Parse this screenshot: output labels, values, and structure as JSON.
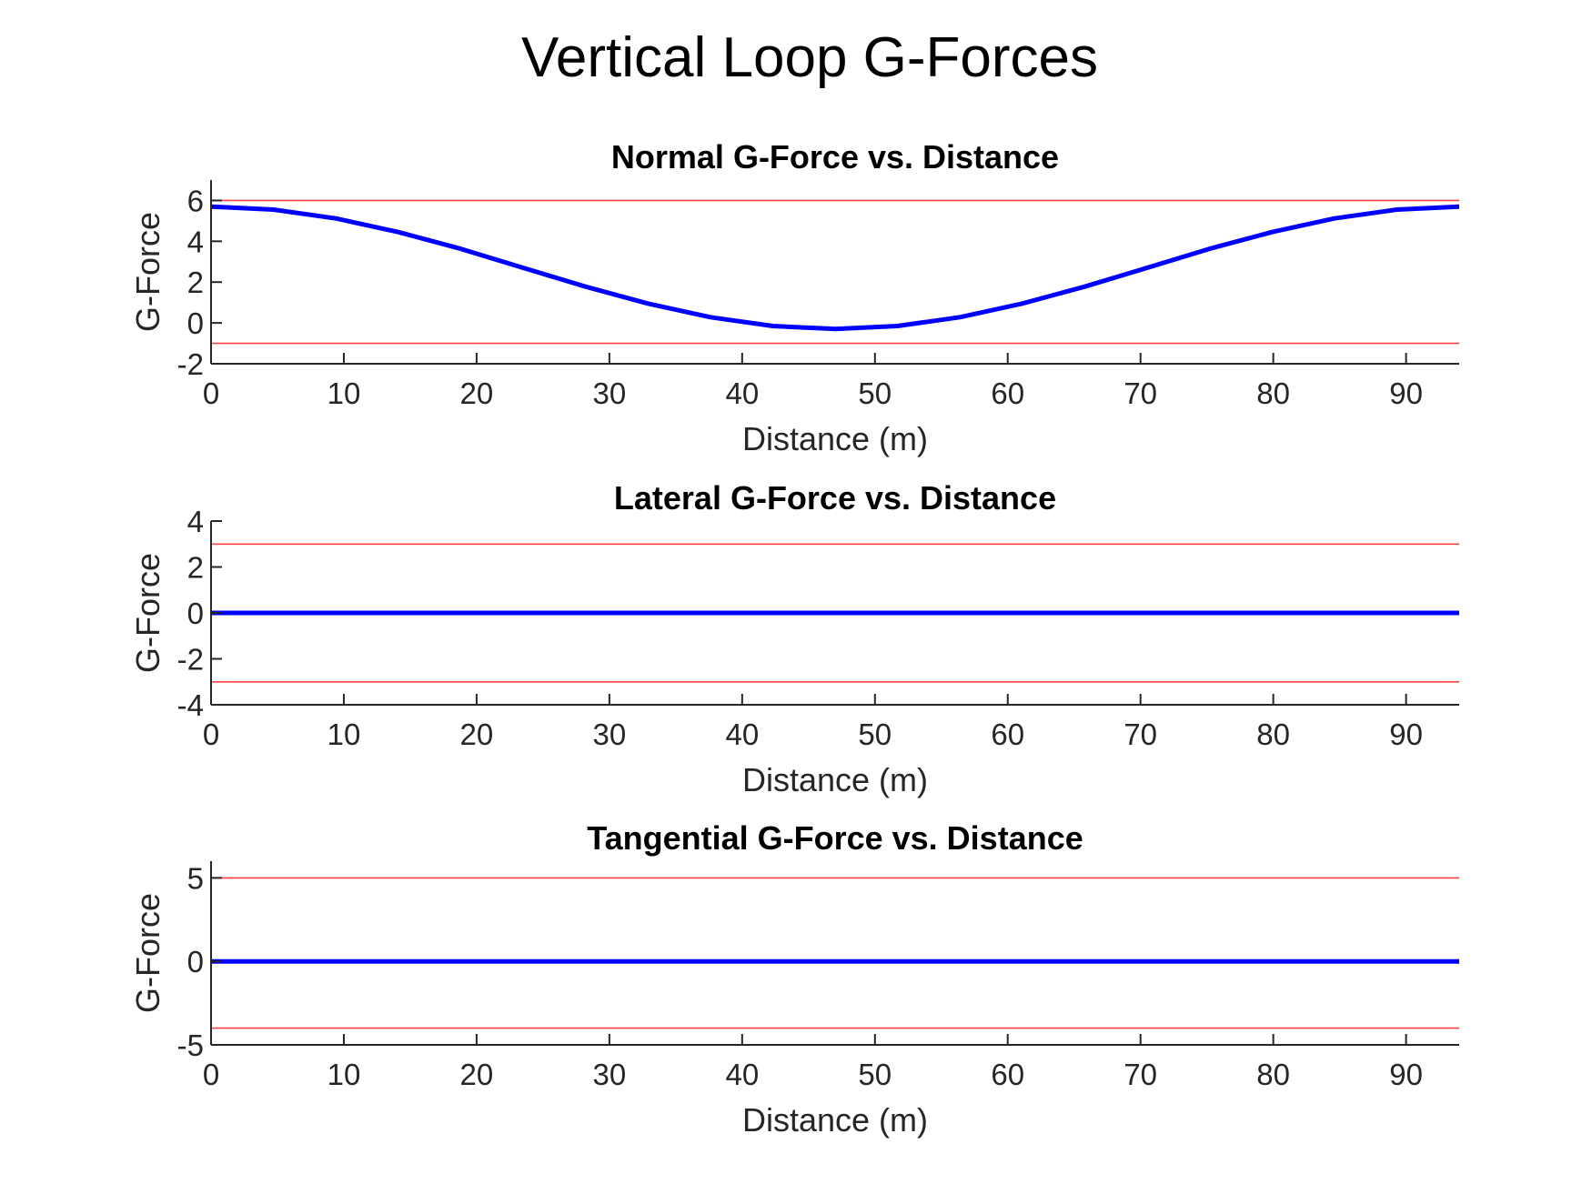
{
  "figure_title": "Vertical Loop G-Forces",
  "colors": {
    "data_line": "#0000ff",
    "limit_line": "#ff0000"
  },
  "chart_data": [
    {
      "type": "line",
      "title": "Normal G-Force vs. Distance",
      "xlabel": "Distance (m)",
      "ylabel": "G-Force",
      "xlim": [
        0,
        94
      ],
      "ylim": [
        -2,
        7
      ],
      "xticks": [
        0,
        10,
        20,
        30,
        40,
        50,
        60,
        70,
        80,
        90
      ],
      "yticks": [
        -2,
        0,
        2,
        4,
        6
      ],
      "grid": false,
      "series": [
        {
          "role": "data",
          "x": [
            0,
            4.7,
            9.4,
            14.1,
            18.8,
            23.5,
            28.2,
            32.9,
            37.6,
            42.3,
            47,
            51.7,
            56.4,
            61.1,
            65.8,
            70.5,
            75.2,
            79.9,
            84.6,
            89.3,
            94
          ],
          "values": [
            5.7,
            5.55,
            5.12,
            4.45,
            3.63,
            2.7,
            1.78,
            0.95,
            0.28,
            -0.15,
            -0.3,
            -0.15,
            0.28,
            0.95,
            1.78,
            2.7,
            3.63,
            4.45,
            5.12,
            5.55,
            5.7
          ]
        },
        {
          "role": "limit",
          "x": [
            0,
            94
          ],
          "values": [
            6,
            6
          ]
        },
        {
          "role": "limit",
          "x": [
            0,
            94
          ],
          "values": [
            -1,
            -1
          ]
        }
      ]
    },
    {
      "type": "line",
      "title": "Lateral G-Force vs. Distance",
      "xlabel": "Distance (m)",
      "ylabel": "G-Force",
      "xlim": [
        0,
        94
      ],
      "ylim": [
        -4,
        4
      ],
      "xticks": [
        0,
        10,
        20,
        30,
        40,
        50,
        60,
        70,
        80,
        90
      ],
      "yticks": [
        -4,
        -2,
        0,
        2,
        4
      ],
      "grid": false,
      "series": [
        {
          "role": "data",
          "x": [
            0,
            94
          ],
          "values": [
            0,
            0
          ]
        },
        {
          "role": "limit",
          "x": [
            0,
            94
          ],
          "values": [
            3,
            3
          ]
        },
        {
          "role": "limit",
          "x": [
            0,
            94
          ],
          "values": [
            -3,
            -3
          ]
        }
      ]
    },
    {
      "type": "line",
      "title": "Tangential G-Force vs. Distance",
      "xlabel": "Distance (m)",
      "ylabel": "G-Force",
      "xlim": [
        0,
        94
      ],
      "ylim": [
        -5,
        6
      ],
      "xticks": [
        0,
        10,
        20,
        30,
        40,
        50,
        60,
        70,
        80,
        90
      ],
      "yticks": [
        -5,
        0,
        5
      ],
      "grid": false,
      "series": [
        {
          "role": "data",
          "x": [
            0,
            94
          ],
          "values": [
            0,
            0
          ]
        },
        {
          "role": "limit",
          "x": [
            0,
            94
          ],
          "values": [
            5,
            5
          ]
        },
        {
          "role": "limit",
          "x": [
            0,
            94
          ],
          "values": [
            -4,
            -4
          ]
        }
      ]
    }
  ]
}
